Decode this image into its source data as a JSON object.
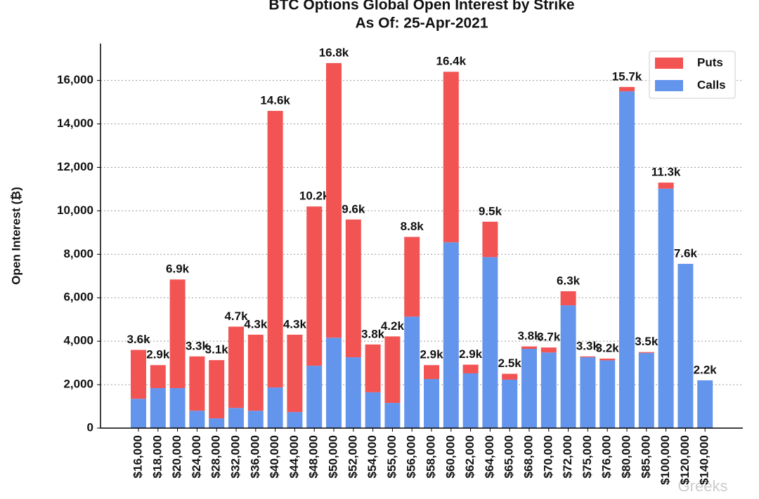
{
  "chart_data": {
    "type": "stacked_bar",
    "title": "BTC Options Global Open Interest by Strike",
    "subtitle": "As Of: 25-Apr-2021",
    "y_label": "Open Interest (₿)",
    "categories": [
      "$16,000",
      "$18,000",
      "$20,000",
      "$24,000",
      "$28,000",
      "$32,000",
      "$36,000",
      "$40,000",
      "$44,000",
      "$48,000",
      "$50,000",
      "$52,000",
      "$54,000",
      "$55,000",
      "$56,000",
      "$58,000",
      "$60,000",
      "$62,000",
      "$64,000",
      "$65,000",
      "$68,000",
      "$70,000",
      "$72,000",
      "$75,000",
      "$76,000",
      "$80,000",
      "$85,000",
      "$100,000",
      "$120,000",
      "$140,000"
    ],
    "series": [
      {
        "name": "Calls",
        "color": "#6495ed",
        "values": [
          1350,
          1840,
          1840,
          800,
          450,
          930,
          800,
          1870,
          740,
          2870,
          4160,
          3260,
          1650,
          1160,
          5130,
          2260,
          8550,
          2520,
          7870,
          2230,
          3650,
          3480,
          5650,
          3260,
          3120,
          15500,
          3460,
          11020,
          7560,
          2200
        ]
      },
      {
        "name": "Puts",
        "color": "#f25454",
        "values": [
          2250,
          1060,
          5000,
          2500,
          2680,
          3740,
          3500,
          12730,
          3560,
          7330,
          12640,
          6340,
          2200,
          3060,
          3670,
          640,
          7850,
          400,
          1630,
          270,
          110,
          230,
          650,
          40,
          80,
          200,
          40,
          280,
          0,
          0
        ]
      }
    ],
    "total_labels": [
      "3.6k",
      "2.9k",
      "6.9k",
      "3.3k",
      "3.1k",
      "4.7k",
      "4.3k",
      "14.6k",
      "4.3k",
      "10.2k",
      "16.8k",
      "9.6k",
      "3.8k",
      "4.2k",
      "8.8k",
      "2.9k",
      "16.4k",
      "2.9k",
      "9.5k",
      "2.5k",
      "3.8k",
      "3.7k",
      "6.3k",
      "3.3k",
      "3.2k",
      "15.7k",
      "3.5k",
      "11.3k",
      "7.6k",
      "2.2k"
    ],
    "ylim": [
      0,
      17700
    ],
    "yticks": [
      0,
      {
        "value": 2000,
        "label": "2,000"
      },
      {
        "value": 4000,
        "label": "4,000"
      },
      {
        "value": 6000,
        "label": "6,000"
      },
      {
        "value": 8000,
        "label": "8,000"
      },
      {
        "value": 10000,
        "label": "10,000"
      },
      {
        "value": 12000,
        "label": "12,000"
      },
      {
        "value": 14000,
        "label": "14,000"
      },
      {
        "value": 16000,
        "label": "16,000"
      }
    ],
    "grid": true,
    "legend": "upper right",
    "watermark": "Greeks"
  }
}
